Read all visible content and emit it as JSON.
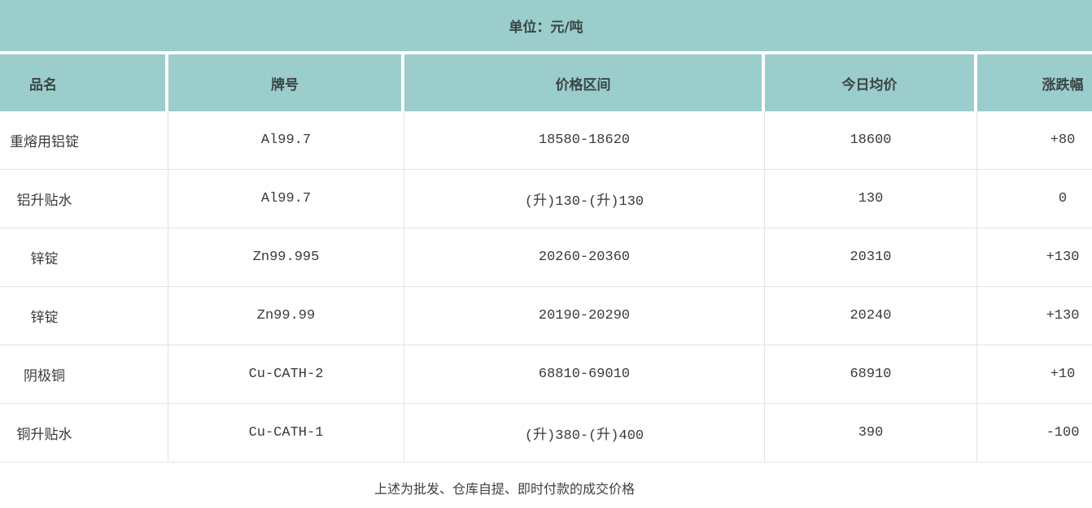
{
  "unit_bar": {
    "label": "单位：元/吨"
  },
  "table": {
    "columns": {
      "name": "品名",
      "brand": "牌号",
      "range": "价格区间",
      "avg": "今日均价",
      "change": "涨跌幅"
    },
    "rows": [
      {
        "name": "重熔用铝锭",
        "brand": "Al99.7",
        "range": "18580-18620",
        "avg": "18600",
        "change": "+80"
      },
      {
        "name": "铝升贴水",
        "brand": "Al99.7",
        "range": "(升)130-(升)130",
        "avg": "130",
        "change": "0"
      },
      {
        "name": "锌锭",
        "brand": "Zn99.995",
        "range": "20260-20360",
        "avg": "20310",
        "change": "+130"
      },
      {
        "name": "锌锭",
        "brand": "Zn99.99",
        "range": "20190-20290",
        "avg": "20240",
        "change": "+130"
      },
      {
        "name": "阴极铜",
        "brand": "Cu-CATH-2",
        "range": "68810-69010",
        "avg": "68910",
        "change": "+10"
      },
      {
        "name": "铜升贴水",
        "brand": "Cu-CATH-1",
        "range": "(升)380-(升)400",
        "avg": "390",
        "change": "-100"
      }
    ]
  },
  "footer": {
    "note": "上述为批发、仓库自提、即时付款的成交价格"
  },
  "colors": {
    "accent_teal": "#9acdcb",
    "grid_line": "#e3e3e3",
    "text": "#363b3d"
  }
}
